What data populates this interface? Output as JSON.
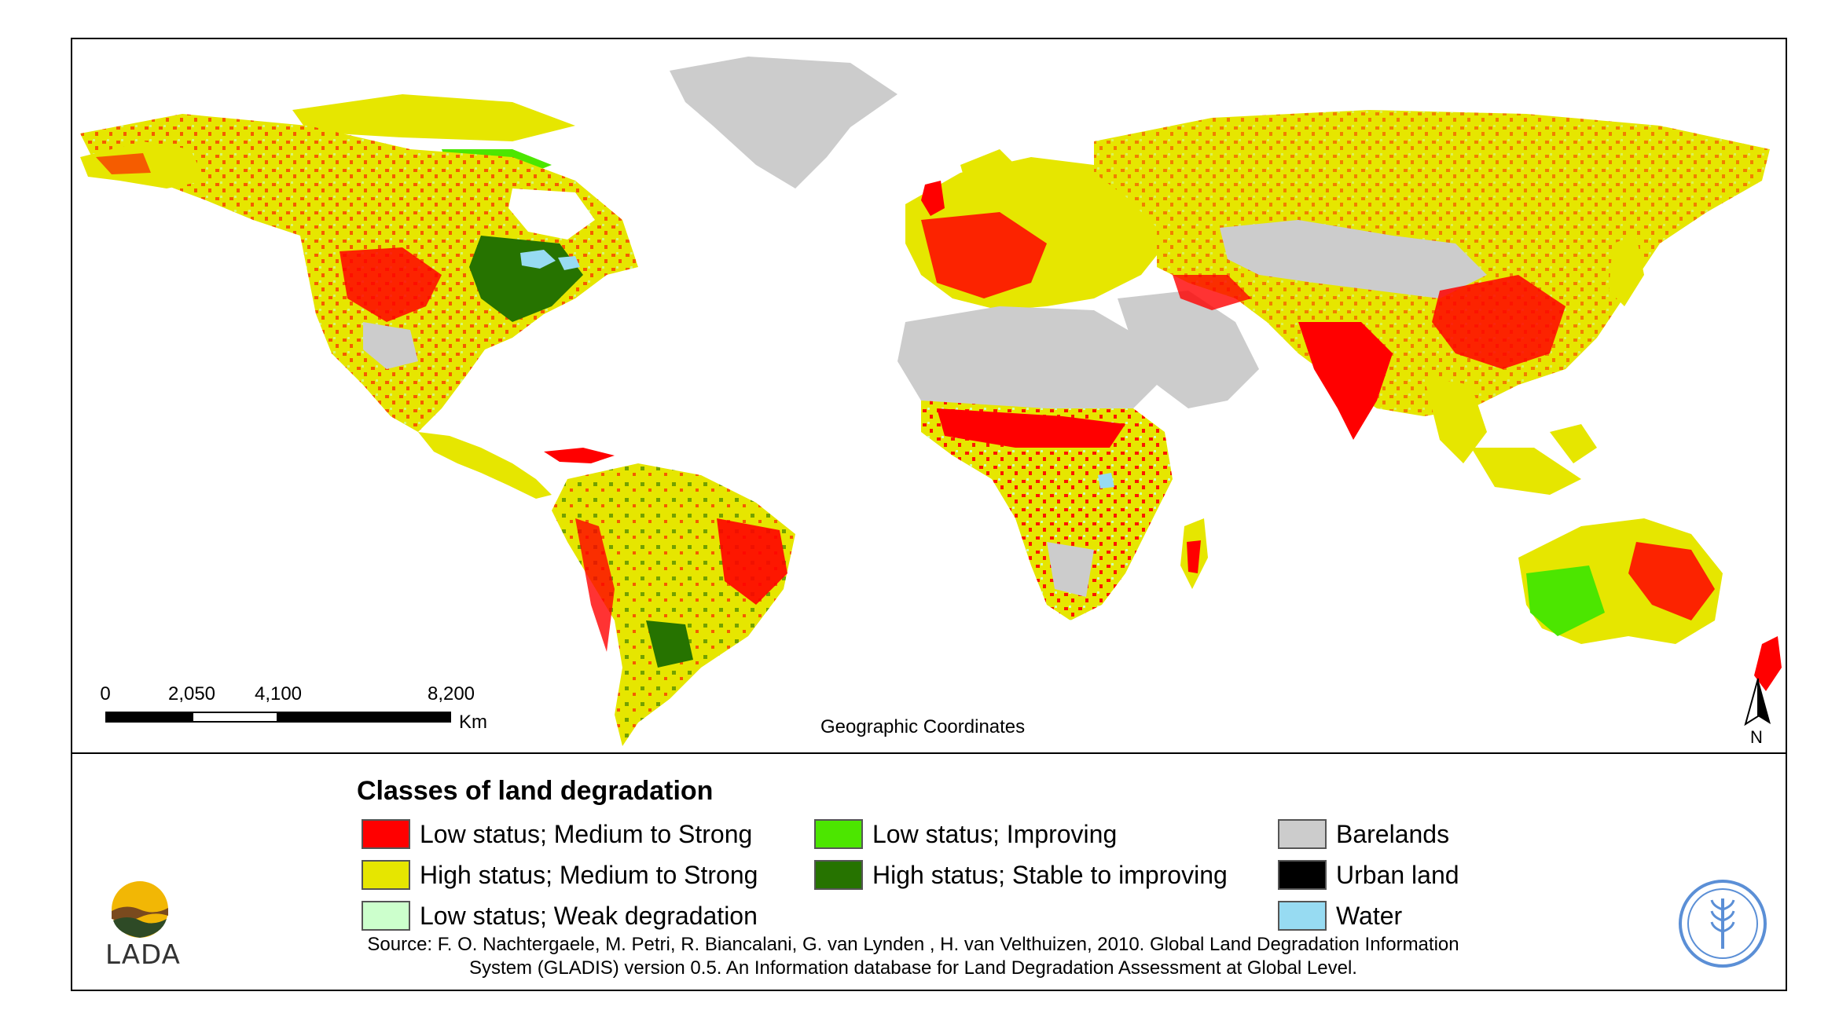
{
  "map": {
    "projection_label": "Geographic Coordinates",
    "scale_bar": {
      "ticks": [
        "0",
        "2,050",
        "4,100",
        "8,200"
      ],
      "unit": "Km"
    },
    "north_arrow": "N"
  },
  "legend": {
    "title": "Classes of land degradation",
    "items": [
      {
        "label": "Low status; Medium to Strong",
        "color": "#ff0000"
      },
      {
        "label": "High status; Medium to Strong",
        "color": "#e6e600"
      },
      {
        "label": "Low status; Weak degradation",
        "color": "#ccffcc"
      },
      {
        "label": "Low status; Improving",
        "color": "#4ce600"
      },
      {
        "label": "High status; Stable to improving",
        "color": "#267300"
      },
      {
        "label": "Barelands",
        "color": "#cccccc"
      },
      {
        "label": "Urban land",
        "color": "#000000"
      },
      {
        "label": "Water",
        "color": "#97dbf2"
      }
    ]
  },
  "source": {
    "line1": "Source: F. O. Nachtergaele, M. Petri, R. Biancalani, G. van Lynden , H. van Velthuizen, 2010. Global Land Degradation Information",
    "line2": "System (GLADIS) version 0.5. An Information database for Land Degradation Assessment at Global Level."
  },
  "logos": {
    "lada": "LADA",
    "fao": "FAO FIAT PANIS"
  }
}
